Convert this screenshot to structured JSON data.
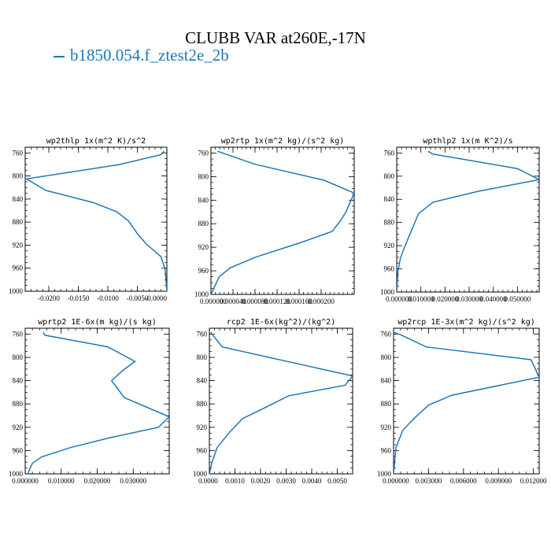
{
  "title": "CLUBB VAR at260E,-17N",
  "legend": {
    "label": "b1850.054.f_ztest2e_2b",
    "color": "#1f77b4"
  },
  "chart_data": [
    {
      "type": "line",
      "title": "wp2thlp  1x(m^2 K)/s^2",
      "xlim": [
        -0.024,
        0.0
      ],
      "ylim": [
        1000,
        750
      ],
      "x_ticks": [
        -0.02,
        -0.015,
        -0.01,
        -0.005,
        0.0
      ],
      "x_tick_labels": [
        "-0.0200",
        "-0.0150",
        "-0.0100",
        "-0.0050",
        "-0.0000"
      ],
      "y_ticks": [
        760,
        800,
        840,
        880,
        920,
        960,
        1000
      ],
      "series": [
        {
          "x": [
            -0.0005,
            -0.001,
            -0.008,
            -0.0238,
            -0.0205,
            -0.0125,
            -0.0085,
            -0.0065,
            -0.005,
            -0.0035,
            -0.001,
            -0.0003,
            0.0
          ],
          "y": [
            757,
            763,
            780,
            805,
            825,
            846,
            862,
            878,
            900,
            918,
            940,
            962,
            1000
          ]
        }
      ]
    },
    {
      "type": "line",
      "title": "wp2rtp  1x(m^2 kg)/(s^2 kg)",
      "xlim": [
        0.0,
        0.00026
      ],
      "ylim": [
        1000,
        750
      ],
      "x_ticks": [
        0.0,
        4e-05,
        8e-05,
        0.00012,
        0.00016,
        0.0002
      ],
      "x_tick_labels": [
        "0.000000",
        "0.000040",
        "0.000080",
        "0.000120",
        "0.000160",
        "0.000200"
      ],
      "y_ticks": [
        760,
        800,
        840,
        880,
        920,
        960,
        1000
      ],
      "series": [
        {
          "x": [
            1.2e-05,
            8e-05,
            0.000205,
            0.00026,
            0.000245,
            0.000235,
            0.00022,
            0.00016,
            8e-05,
            3.5e-05,
            1.5e-05,
            5e-06,
            0.0
          ],
          "y": [
            757,
            779,
            806,
            828,
            860,
            875,
            893,
            913,
            937,
            955,
            970,
            990,
            1000
          ]
        }
      ]
    },
    {
      "type": "line",
      "title": "wpthlp2  1x(m K^2)/s",
      "xlim": [
        0.0,
        0.059
      ],
      "ylim": [
        1000,
        750
      ],
      "x_ticks": [
        0.0,
        0.01,
        0.02,
        0.03,
        0.04,
        0.05
      ],
      "x_tick_labels": [
        "0.000000",
        "0.010000",
        "0.020000",
        "0.030000",
        "0.040000",
        "0.050000"
      ],
      "y_ticks": [
        760,
        800,
        840,
        880,
        920,
        960,
        1000
      ],
      "series": [
        {
          "x": [
            0.013,
            0.015,
            0.05,
            0.059,
            0.034,
            0.015,
            0.009,
            0.007,
            0.005,
            0.003,
            0.0015,
            0.0005,
            0.0
          ],
          "y": [
            757,
            762,
            787,
            806,
            826,
            845,
            865,
            885,
            905,
            925,
            942,
            965,
            1000
          ]
        }
      ]
    },
    {
      "type": "line",
      "title": "wprtp2  1E-6x(m kg)/(s kg)",
      "xlim": [
        0.0,
        0.04
      ],
      "ylim": [
        1000,
        750
      ],
      "x_ticks": [
        0.0,
        0.01,
        0.02,
        0.03
      ],
      "x_tick_labels": [
        "0.000000",
        "0.010000",
        "0.020000",
        "0.030000"
      ],
      "y_ticks": [
        760,
        800,
        840,
        880,
        920,
        960,
        1000
      ],
      "series": [
        {
          "x": [
            0.005,
            0.0055,
            0.023,
            0.0305,
            0.027,
            0.024,
            0.0275,
            0.04,
            0.037,
            0.0235,
            0.0125,
            0.0045,
            0.002,
            0.001,
            0.0009
          ],
          "y": [
            757,
            762,
            782,
            807,
            823,
            840,
            869,
            902,
            920,
            938,
            955,
            971,
            982,
            995,
            1000
          ]
        }
      ]
    },
    {
      "type": "line",
      "title": "rcp2  1E-6x(kg^2)/(kg^2)",
      "xlim": [
        0.0,
        0.0056
      ],
      "ylim": [
        1000,
        750
      ],
      "x_ticks": [
        0.0,
        0.001,
        0.002,
        0.003,
        0.004,
        0.005
      ],
      "x_tick_labels": [
        "0.0000",
        "0.0010",
        "0.0020",
        "0.0030",
        "0.0040",
        "0.0050"
      ],
      "y_ticks": [
        760,
        800,
        840,
        880,
        920,
        960,
        1000
      ],
      "series": [
        {
          "x": [
            5e-05,
            0.0005,
            0.0056,
            0.0053,
            0.0031,
            0.0021,
            0.0013,
            0.0008,
            0.0003,
            0.0001,
            0.0
          ],
          "y": [
            757,
            782,
            832,
            848,
            866,
            888,
            905,
            928,
            955,
            980,
            1000
          ]
        }
      ]
    },
    {
      "type": "line",
      "title": "wp2rcp  1E-3x(m^2 kg)/(s^2 kg)",
      "xlim": [
        0.0,
        0.0125
      ],
      "ylim": [
        1000,
        750
      ],
      "x_ticks": [
        0.0,
        0.003,
        0.006,
        0.009,
        0.012
      ],
      "x_tick_labels": [
        "0.000000",
        "0.003000",
        "0.006000",
        "0.009000",
        "0.012000"
      ],
      "y_ticks": [
        760,
        800,
        840,
        880,
        920,
        960,
        1000
      ],
      "series": [
        {
          "x": [
            5e-05,
            0.0007,
            0.0028,
            0.0118,
            0.0125,
            0.005,
            0.003,
            0.0017,
            0.0008,
            0.0002,
            0.0
          ],
          "y": [
            757,
            762,
            782,
            804,
            834,
            865,
            882,
            906,
            925,
            955,
            1000
          ]
        }
      ]
    }
  ]
}
